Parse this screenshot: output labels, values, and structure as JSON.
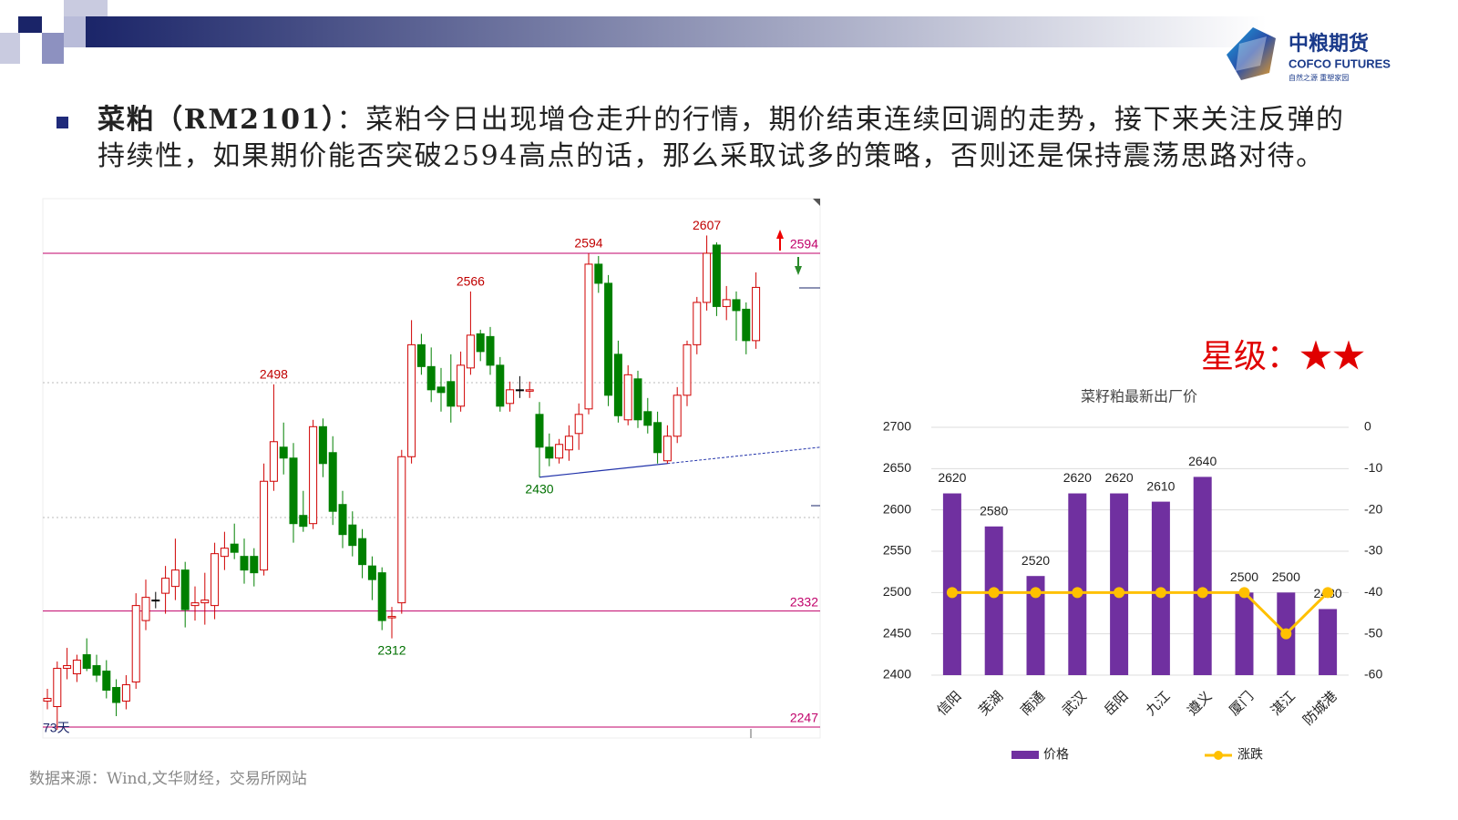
{
  "header": {
    "logo_cn": "中粮期货",
    "logo_en": "COFCO FUTURES",
    "logo_slogan": "自然之源 重塑家园"
  },
  "commentary": {
    "heading": "菜粕（RM2101）",
    "text": "：菜粕今日出现增仓走升的行情，期价结束连续回调的走势，接下来关注反弹的持续性，如果期价能否突破2594高点的话，那么采取试多的策略，否则还是保持震荡思路对待。"
  },
  "rating": "星级：★★",
  "source": "数据来源：Wind,文华财经，交易所网站",
  "chart_data": [
    {
      "type": "candlestick",
      "up_color": "#d00000",
      "down_color": "#008000",
      "level_color": "#c0006a",
      "ylim": [
        2239,
        2634
      ],
      "span_label": "73天",
      "open": [
        2266,
        2262,
        2290,
        2286,
        2300,
        2292,
        2288,
        2276,
        2266,
        2280,
        2325,
        2340,
        2345,
        2350,
        2362,
        2336,
        2338,
        2336,
        2372,
        2381,
        2372,
        2372,
        2362,
        2427,
        2452,
        2444,
        2402,
        2396,
        2467,
        2448,
        2410,
        2395,
        2385,
        2365,
        2360,
        2327,
        2338,
        2445,
        2527,
        2511,
        2496,
        2500,
        2482,
        2510,
        2535,
        2533,
        2512,
        2484,
        2494,
        2493,
        2476,
        2452,
        2444,
        2450,
        2462,
        2480,
        2586,
        2572,
        2520,
        2472,
        2502,
        2478,
        2470,
        2442,
        2460,
        2490,
        2527,
        2558,
        2600,
        2555,
        2560,
        2553,
        2530
      ],
      "high": [
        2275,
        2295,
        2305,
        2300,
        2312,
        2300,
        2296,
        2282,
        2285,
        2345,
        2355,
        2346,
        2365,
        2385,
        2368,
        2350,
        2360,
        2382,
        2390,
        2396,
        2385,
        2378,
        2440,
        2498,
        2470,
        2455,
        2420,
        2472,
        2473,
        2460,
        2420,
        2405,
        2392,
        2372,
        2364,
        2335,
        2450,
        2545,
        2535,
        2525,
        2510,
        2520,
        2522,
        2566,
        2538,
        2540,
        2518,
        2500,
        2504,
        2500,
        2485,
        2462,
        2458,
        2468,
        2484,
        2594,
        2592,
        2578,
        2530,
        2512,
        2508,
        2488,
        2478,
        2468,
        2496,
        2530,
        2562,
        2607,
        2602,
        2570,
        2566,
        2558,
        2580
      ],
      "low": [
        2260,
        2245,
        2282,
        2280,
        2288,
        2280,
        2268,
        2255,
        2260,
        2275,
        2318,
        2334,
        2330,
        2340,
        2320,
        2325,
        2322,
        2326,
        2362,
        2370,
        2352,
        2350,
        2358,
        2420,
        2432,
        2382,
        2390,
        2392,
        2430,
        2395,
        2378,
        2372,
        2356,
        2340,
        2318,
        2312,
        2330,
        2440,
        2505,
        2485,
        2478,
        2470,
        2478,
        2505,
        2515,
        2505,
        2478,
        2478,
        2488,
        2488,
        2430,
        2438,
        2440,
        2442,
        2450,
        2476,
        2565,
        2482,
        2470,
        2468,
        2466,
        2462,
        2440,
        2440,
        2455,
        2482,
        2520,
        2552,
        2548,
        2545,
        2530,
        2520,
        2524
      ],
      "close": [
        2268,
        2290,
        2292,
        2296,
        2290,
        2285,
        2274,
        2265,
        2278,
        2336,
        2342,
        2340,
        2356,
        2362,
        2333,
        2338,
        2340,
        2374,
        2378,
        2375,
        2362,
        2360,
        2427,
        2456,
        2444,
        2396,
        2394,
        2467,
        2440,
        2405,
        2388,
        2380,
        2366,
        2355,
        2325,
        2328,
        2445,
        2527,
        2511,
        2494,
        2492,
        2482,
        2512,
        2534,
        2522,
        2512,
        2482,
        2494,
        2494,
        2494,
        2452,
        2444,
        2454,
        2460,
        2476,
        2586,
        2572,
        2490,
        2475,
        2505,
        2472,
        2468,
        2448,
        2460,
        2490,
        2527,
        2558,
        2594,
        2555,
        2560,
        2552,
        2530,
        2569
      ],
      "levels": [
        2594,
        2332,
        2247
      ],
      "annotations": [
        {
          "index": 23,
          "value": 2498
        },
        {
          "index": 43,
          "value": 2566
        },
        {
          "index": 55,
          "value": 2594
        },
        {
          "index": 67,
          "value": 2607
        },
        {
          "index": 50,
          "value": 2430
        },
        {
          "index": 35,
          "value": 2312
        }
      ],
      "trendline": [
        [
          50,
          2430
        ],
        [
          63,
          2440
        ]
      ]
    },
    {
      "type": "bar",
      "title": "菜籽粕最新出厂价",
      "categories": [
        "信阳",
        "芜湖",
        "南通",
        "武汉",
        "岳阳",
        "九江",
        "遵义",
        "厦门",
        "湛江",
        "防城港"
      ],
      "series": [
        {
          "name": "价格",
          "color": "#7030a0",
          "values": [
            2620,
            2580,
            2520,
            2620,
            2620,
            2610,
            2640,
            2500,
            2500,
            2480
          ]
        },
        {
          "name": "涨跌",
          "color": "#ffc000",
          "axis": "y2",
          "values": [
            -40,
            -40,
            -40,
            -40,
            -40,
            -40,
            -40,
            -40,
            -50,
            -40
          ]
        }
      ],
      "ylim": [
        2400,
        2700
      ],
      "yticks": [
        2400,
        2450,
        2500,
        2550,
        2600,
        2650,
        2700
      ],
      "y2lim": [
        -60,
        0
      ],
      "y2ticks": [
        -60,
        -50,
        -40,
        -30,
        -20,
        -10,
        0
      ],
      "grid": true,
      "legend": "bottom"
    }
  ]
}
